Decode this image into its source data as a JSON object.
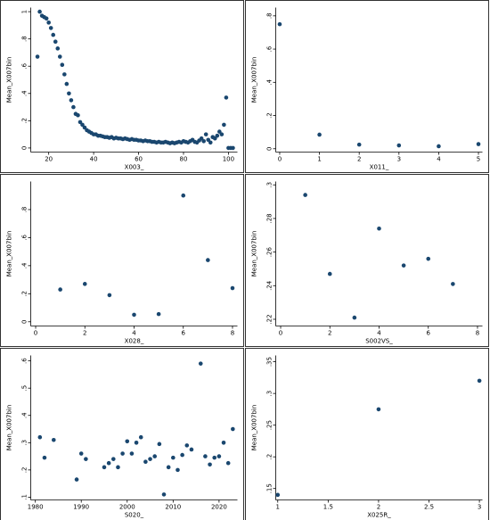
{
  "chart_data": [
    {
      "type": "scatter",
      "xlabel": "X003_",
      "ylabel": "Mean_X007bin",
      "color": "#1a476f",
      "x": [
        15,
        16,
        17,
        18,
        19,
        20,
        21,
        22,
        23,
        24,
        25,
        26,
        27,
        28,
        29,
        30,
        31,
        32,
        33,
        34,
        35,
        36,
        37,
        38,
        39,
        40,
        41,
        42,
        43,
        44,
        45,
        46,
        47,
        48,
        49,
        50,
        51,
        52,
        53,
        54,
        55,
        56,
        57,
        58,
        59,
        60,
        61,
        62,
        63,
        64,
        65,
        66,
        67,
        68,
        69,
        70,
        71,
        72,
        73,
        74,
        75,
        76,
        77,
        78,
        79,
        80,
        81,
        82,
        83,
        84,
        85,
        86,
        87,
        88,
        89,
        90,
        91,
        92,
        93,
        94,
        95,
        96,
        97,
        98,
        99,
        100,
        101,
        102
      ],
      "values": [
        0.67,
        1.0,
        0.97,
        0.96,
        0.95,
        0.92,
        0.88,
        0.83,
        0.78,
        0.73,
        0.67,
        0.61,
        0.54,
        0.47,
        0.4,
        0.35,
        0.3,
        0.25,
        0.24,
        0.19,
        0.17,
        0.15,
        0.13,
        0.12,
        0.11,
        0.1,
        0.1,
        0.09,
        0.09,
        0.085,
        0.08,
        0.08,
        0.075,
        0.08,
        0.07,
        0.075,
        0.07,
        0.07,
        0.065,
        0.07,
        0.065,
        0.06,
        0.065,
        0.06,
        0.06,
        0.055,
        0.055,
        0.05,
        0.055,
        0.05,
        0.05,
        0.045,
        0.045,
        0.04,
        0.045,
        0.04,
        0.04,
        0.045,
        0.04,
        0.035,
        0.04,
        0.035,
        0.04,
        0.045,
        0.04,
        0.05,
        0.045,
        0.04,
        0.05,
        0.06,
        0.045,
        0.04,
        0.055,
        0.07,
        0.05,
        0.1,
        0.06,
        0.04,
        0.08,
        0.07,
        0.09,
        0.12,
        0.1,
        0.17,
        0.37,
        0,
        0,
        0
      ],
      "xlim": [
        12,
        104
      ],
      "xticks": [
        20,
        40,
        60,
        80,
        100
      ],
      "ylim": [
        -0.03,
        1.03
      ],
      "yticks": [
        0,
        {
          "value": 0.2,
          "label": ".2"
        },
        {
          "value": 0.4,
          "label": ".4"
        },
        {
          "value": 0.6,
          "label": ".6"
        },
        {
          "value": 0.8,
          "label": ".8"
        },
        1
      ]
    },
    {
      "type": "scatter",
      "xlabel": "X011_",
      "ylabel": "Mean_X007bin",
      "color": "#1a476f",
      "x": [
        0,
        1,
        2,
        3,
        4,
        5
      ],
      "values": [
        0.75,
        0.085,
        0.025,
        0.02,
        0.015,
        0.028
      ],
      "xlim": [
        -0.1,
        5.1
      ],
      "xticks": [
        0,
        1,
        2,
        3,
        4,
        5
      ],
      "ylim": [
        -0.02,
        0.85
      ],
      "yticks": [
        0,
        {
          "value": 0.2,
          "label": ".2"
        },
        {
          "value": 0.4,
          "label": ".4"
        },
        {
          "value": 0.6,
          "label": ".6"
        },
        {
          "value": 0.8,
          "label": ".8"
        }
      ]
    },
    {
      "type": "scatter",
      "xlabel": "X028_",
      "ylabel": "Mean_X007bin",
      "color": "#1a476f",
      "x": [
        1,
        2,
        3,
        4,
        5,
        6,
        7,
        8
      ],
      "values": [
        0.23,
        0.27,
        0.19,
        0.05,
        0.055,
        0.9,
        0.44,
        0.24
      ],
      "xlim": [
        -0.2,
        8.2
      ],
      "xticks": [
        0,
        2,
        4,
        6,
        8
      ],
      "ylim": [
        -0.03,
        1.0
      ],
      "yticks": [
        0,
        {
          "value": 0.2,
          "label": ".2"
        },
        {
          "value": 0.4,
          "label": ".4"
        },
        {
          "value": 0.6,
          "label": ".6"
        },
        {
          "value": 0.8,
          "label": ".8"
        }
      ]
    },
    {
      "type": "scatter",
      "xlabel": "S002VS_",
      "ylabel": "Mean_X007bin",
      "color": "#1a476f",
      "x": [
        1,
        2,
        3,
        4,
        5,
        6,
        7
      ],
      "values": [
        0.294,
        0.247,
        0.221,
        0.274,
        0.252,
        0.256,
        0.241
      ],
      "xlim": [
        -0.2,
        8.2
      ],
      "xticks": [
        0,
        2,
        4,
        6,
        8
      ],
      "ylim": [
        0.216,
        0.302
      ],
      "yticks": [
        {
          "value": 0.22,
          "label": ".22"
        },
        {
          "value": 0.24,
          "label": ".24"
        },
        {
          "value": 0.26,
          "label": ".26"
        },
        {
          "value": 0.28,
          "label": ".28"
        },
        {
          "value": 0.3,
          "label": ".3"
        }
      ]
    },
    {
      "type": "scatter",
      "xlabel": "S020_",
      "ylabel": "Mean_X007bin",
      "color": "#1a476f",
      "x": [
        1981,
        1982,
        1984,
        1989,
        1990,
        1991,
        1995,
        1996,
        1997,
        1998,
        1999,
        2000,
        2001,
        2002,
        2003,
        2004,
        2005,
        2006,
        2007,
        2008,
        2009,
        2010,
        2011,
        2012,
        2013,
        2014,
        2016,
        2017,
        2018,
        2019,
        2020,
        2021,
        2022,
        2023
      ],
      "values": [
        0.32,
        0.245,
        0.31,
        0.165,
        0.26,
        0.24,
        0.21,
        0.225,
        0.24,
        0.21,
        0.26,
        0.305,
        0.26,
        0.3,
        0.32,
        0.23,
        0.24,
        0.25,
        0.295,
        0.11,
        0.21,
        0.245,
        0.2,
        0.255,
        0.29,
        0.275,
        0.59,
        0.25,
        0.22,
        0.245,
        0.25,
        0.3,
        0.225,
        0.35
      ],
      "xlim": [
        1979,
        2024
      ],
      "xticks": [
        1980,
        1990,
        2000,
        2010,
        2020
      ],
      "ylim": [
        0.09,
        0.62
      ],
      "yticks": [
        {
          "value": 0.1,
          "label": ".1"
        },
        {
          "value": 0.2,
          "label": ".2"
        },
        {
          "value": 0.3,
          "label": ".3"
        },
        {
          "value": 0.4,
          "label": ".4"
        },
        {
          "value": 0.5,
          "label": ".5"
        },
        {
          "value": 0.6,
          "label": ".6"
        }
      ]
    },
    {
      "type": "scatter",
      "xlabel": "X025R_",
      "ylabel": "Mean_X007bin",
      "color": "#1a476f",
      "x": [
        1,
        2,
        3
      ],
      "values": [
        0.14,
        0.275,
        0.32
      ],
      "xlim": [
        0.98,
        3.03
      ],
      "xticks": [
        1,
        1.5,
        2,
        2.5,
        3
      ],
      "ylim": [
        0.132,
        0.36
      ],
      "yticks": [
        {
          "value": 0.15,
          "label": ".15"
        },
        {
          "value": 0.2,
          "label": ".2"
        },
        {
          "value": 0.25,
          "label": ".25"
        },
        {
          "value": 0.3,
          "label": ".3"
        },
        {
          "value": 0.35,
          "label": ".35"
        }
      ]
    }
  ]
}
